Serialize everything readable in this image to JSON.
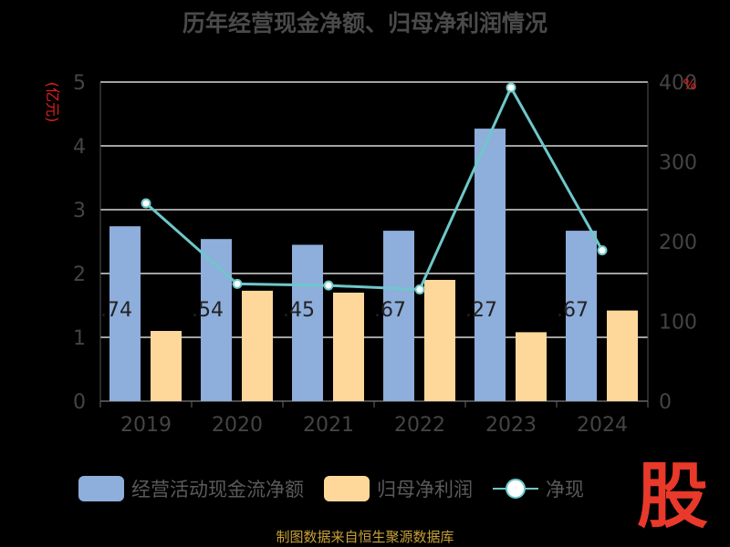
{
  "page": {
    "title": "历年经营现金净额、归母净利润情况",
    "source": "制图数据来自恒生聚源数据库",
    "watermark": "股"
  },
  "chart_data": {
    "type": "bar",
    "categories": [
      "2019",
      "2020",
      "2021",
      "2022",
      "2023",
      "2024"
    ],
    "y_left": {
      "unit": "(亿元)",
      "min": 0,
      "max": 5,
      "ticks": [
        "0",
        "1",
        "2",
        "3",
        "4",
        "5"
      ]
    },
    "y_right": {
      "unit": "%",
      "min": 0,
      "max": 400,
      "ticks": [
        "0",
        "100",
        "200",
        "300",
        "400"
      ]
    },
    "grid": true,
    "legend_position": "bottom",
    "series": [
      {
        "name": "经营活动现金流净额",
        "type": "bar",
        "axis": "left",
        "color": "#8eaedb",
        "values": [
          2.74,
          2.54,
          2.45,
          2.67,
          4.27,
          2.67
        ],
        "labels": [
          ".74",
          ".54",
          ".45",
          ".67",
          ".27",
          ".67"
        ]
      },
      {
        "name": "归母净利润",
        "type": "bar",
        "axis": "left",
        "color": "#fdd89a",
        "values": [
          1.1,
          1.73,
          1.7,
          1.9,
          1.08,
          1.42
        ]
      },
      {
        "name": "净现",
        "type": "line",
        "axis": "right",
        "color": "#6fc7c9",
        "values": [
          248,
          147,
          145,
          140,
          393,
          189
        ]
      }
    ]
  }
}
